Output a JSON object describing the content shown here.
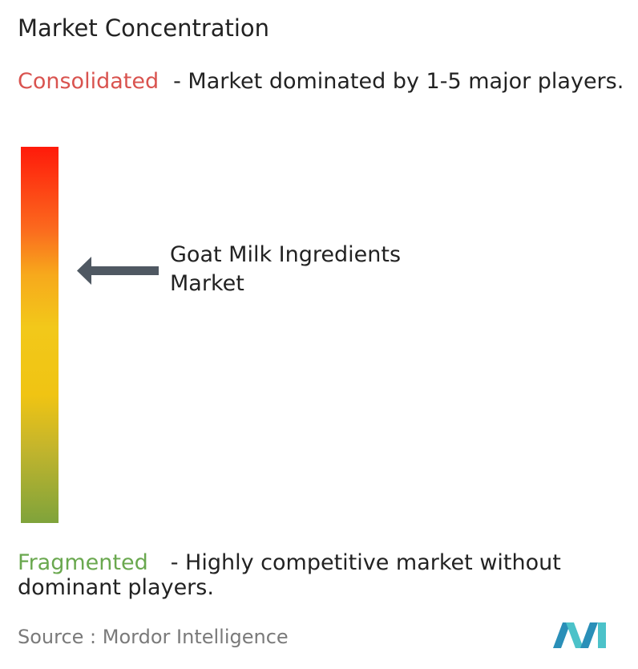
{
  "header": {
    "title": "Market Concentration"
  },
  "consolidated": {
    "label": "Consolidated",
    "description": "- Market dominated by 1-5 major players."
  },
  "marker": {
    "label": "Goat Milk Ingredients Market"
  },
  "fragmented": {
    "label": "Fragmented",
    "description": "- Highly competitive market without dominant players."
  },
  "footer": {
    "source": "Source :  Mordor Intelligence"
  }
}
